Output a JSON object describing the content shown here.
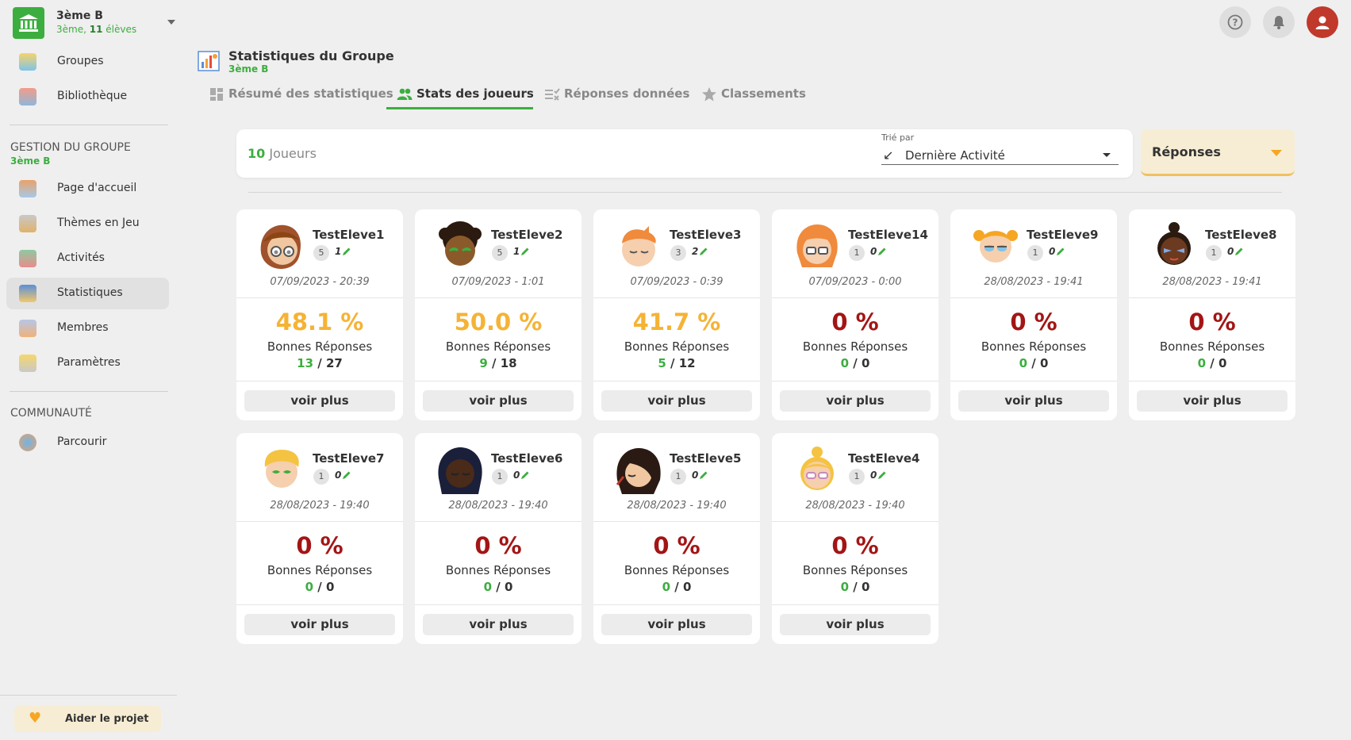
{
  "group": {
    "name": "3ème B",
    "level": "3ème,",
    "count": "11",
    "count_label": "élèves"
  },
  "sidebar": {
    "top_items": [
      {
        "label": "Groupes"
      },
      {
        "label": "Bibliothèque"
      }
    ],
    "section1": {
      "title": "GESTION DU GROUPE",
      "sub": "3ème B"
    },
    "group_items": [
      {
        "label": "Page d'accueil"
      },
      {
        "label": "Thèmes en Jeu"
      },
      {
        "label": "Activités"
      },
      {
        "label": "Statistiques",
        "active": true
      },
      {
        "label": "Membres"
      },
      {
        "label": "Paramètres"
      }
    ],
    "section2": {
      "title": "COMMUNAUTÉ"
    },
    "community_items": [
      {
        "label": "Parcourir"
      }
    ],
    "aider": "Aider le projet"
  },
  "header": {
    "title": "Statistiques du Groupe",
    "sub": "3ème B"
  },
  "tabs": [
    {
      "label": "Résumé des statistiques"
    },
    {
      "label": "Stats des joueurs"
    },
    {
      "label": "Réponses données"
    },
    {
      "label": "Classements"
    }
  ],
  "filter": {
    "count": "10",
    "count_label": "Joueurs",
    "sort_label": "Trié par",
    "sort_value": "Dernière Activité",
    "reponses": "Réponses"
  },
  "labels": {
    "bonnes": "Bonnes Réponses",
    "voir": "voir plus"
  },
  "colors": {
    "green": "#3cae3f",
    "orange": "#f5b335",
    "red": "#a31515",
    "avatar_red": "#c0392b"
  },
  "players": [
    {
      "name": "TestEleve1",
      "sessions": "5",
      "edits": "1",
      "date": "07/09/2023 - 20:39",
      "pct": "48.1 %",
      "good": "13",
      "total": "27"
    },
    {
      "name": "TestEleve2",
      "sessions": "5",
      "edits": "1",
      "date": "07/09/2023 - 1:01",
      "pct": "50.0 %",
      "good": "9",
      "total": "18"
    },
    {
      "name": "TestEleve3",
      "sessions": "3",
      "edits": "2",
      "date": "07/09/2023 - 0:39",
      "pct": "41.7 %",
      "good": "5",
      "total": "12"
    },
    {
      "name": "TestEleve14",
      "sessions": "1",
      "edits": "0",
      "date": "07/09/2023 - 0:00",
      "pct": "0 %",
      "good": "0",
      "total": "0"
    },
    {
      "name": "TestEleve9",
      "sessions": "1",
      "edits": "0",
      "date": "28/08/2023 - 19:41",
      "pct": "0 %",
      "good": "0",
      "total": "0"
    },
    {
      "name": "TestEleve8",
      "sessions": "1",
      "edits": "0",
      "date": "28/08/2023 - 19:41",
      "pct": "0 %",
      "good": "0",
      "total": "0"
    },
    {
      "name": "TestEleve7",
      "sessions": "1",
      "edits": "0",
      "date": "28/08/2023 - 19:40",
      "pct": "0 %",
      "good": "0",
      "total": "0"
    },
    {
      "name": "TestEleve6",
      "sessions": "1",
      "edits": "0",
      "date": "28/08/2023 - 19:40",
      "pct": "0 %",
      "good": "0",
      "total": "0"
    },
    {
      "name": "TestEleve5",
      "sessions": "1",
      "edits": "0",
      "date": "28/08/2023 - 19:40",
      "pct": "0 %",
      "good": "0",
      "total": "0"
    },
    {
      "name": "TestEleve4",
      "sessions": "1",
      "edits": "0",
      "date": "28/08/2023 - 19:40",
      "pct": "0 %",
      "good": "0",
      "total": "0"
    }
  ]
}
